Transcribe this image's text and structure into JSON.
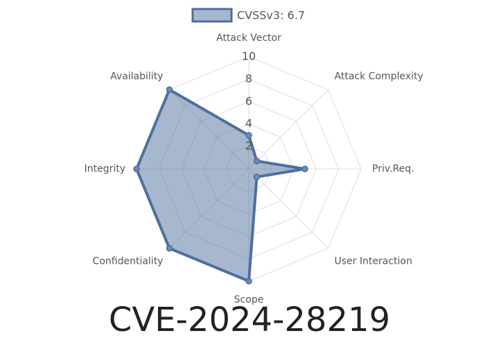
{
  "chart_data": {
    "type": "radar",
    "title": "CVE-2024-28219",
    "categories": [
      "Attack Vector",
      "Attack Complexity",
      "Priv.Req.",
      "User Interaction",
      "Scope",
      "Confidentiality",
      "Integrity",
      "Availability"
    ],
    "series": [
      {
        "name": "CVSSv3: 6.7",
        "color": "#4e6f9e",
        "values": [
          3,
          1,
          5,
          1,
          10,
          10,
          10,
          10
        ]
      }
    ],
    "rlim": [
      0,
      10
    ],
    "rticks": [
      2,
      4,
      6,
      8,
      10
    ],
    "grid": true,
    "legend": "top"
  }
}
